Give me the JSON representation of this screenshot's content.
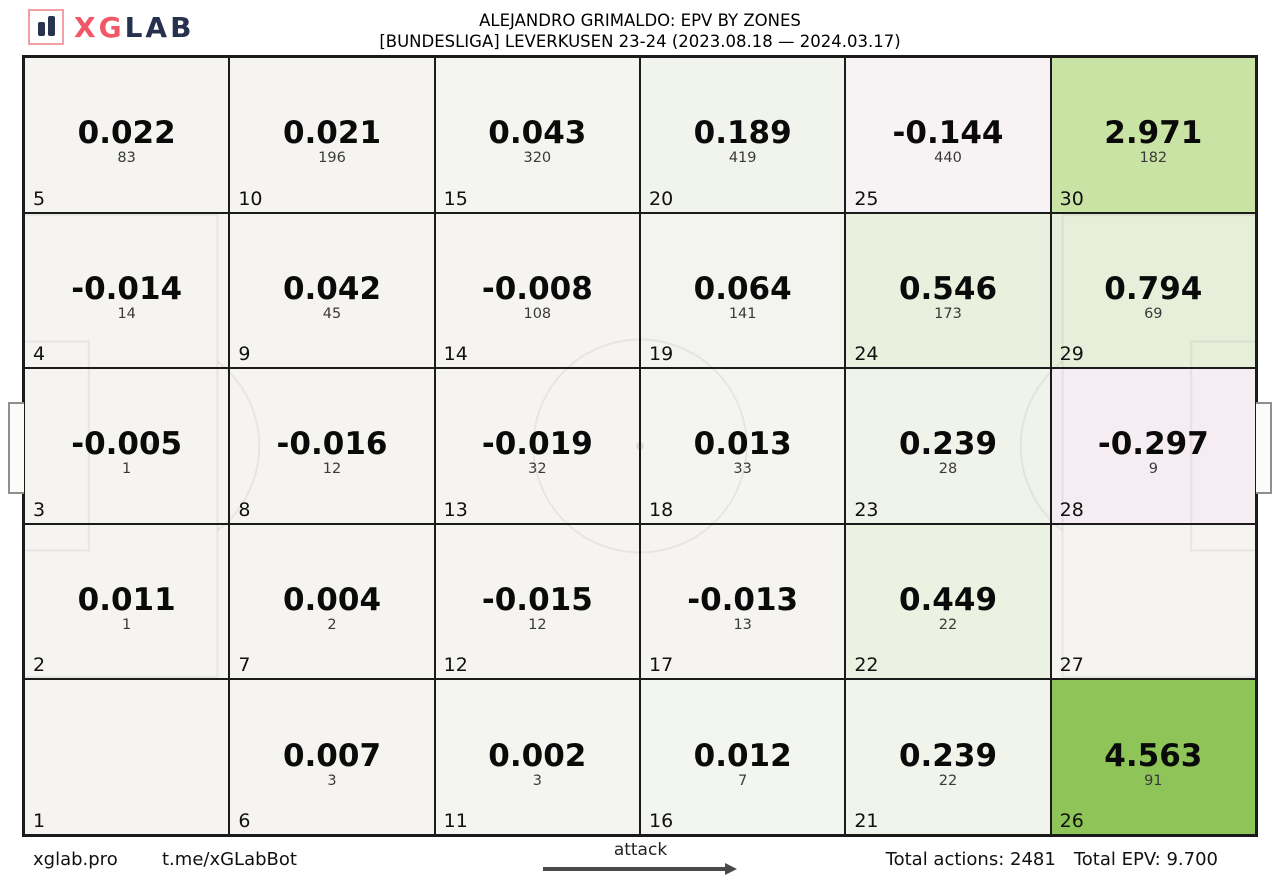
{
  "header": {
    "logo": {
      "text_primary": "XG",
      "text_secondary": "LAB",
      "accent_color": "#f25767",
      "navy_color": "#26324d",
      "icon": "bar-chart-icon"
    },
    "title_line1": "ALEJANDRO GRIMALDO: EPV BY ZONES",
    "title_line2": "[BUNDESLIGA] LEVERKUSEN 23-24 (2023.08.18 — 2024.03.17)"
  },
  "footer": {
    "site": "xglab.pro",
    "bot": "t.me/xGLabBot",
    "attack_label": "attack",
    "total_actions": {
      "label": "Total actions:",
      "value": "2481"
    },
    "total_epv": {
      "label": "Total EPV:",
      "value": "9.700"
    }
  },
  "chart_data": {
    "type": "heatmap",
    "title": "ALEJANDRO GRIMALDO: EPV BY ZONES",
    "subtitle": "[BUNDESLIGA] LEVERKUSEN 23-24 (2023.08.18 — 2024.03.17)",
    "description": "EPV (expected possession value) per pitch zone with action counts; zones numbered 1-30 bottom-left column-major; attack direction left to right",
    "rows": 5,
    "cols": 6,
    "totals": {
      "actions": 2481,
      "epv": 9.7
    },
    "colors": {
      "default_bg": "#f5f4f1",
      "strong_positive": "#8ec458",
      "medium_positive": "#c9e3a4",
      "light_positive": "#eaf0de",
      "negative_tint": "#f6edf2",
      "grid_line": "#1b1b1b"
    },
    "cells": [
      [
        {
          "zone": 5,
          "epv": "0.022",
          "count": "83",
          "bg": "#f5f4f1"
        },
        {
          "zone": 10,
          "epv": "0.021",
          "count": "196",
          "bg": "#f5f4f1"
        },
        {
          "zone": 15,
          "epv": "0.043",
          "count": "320",
          "bg": "#f4f5f1"
        },
        {
          "zone": 20,
          "epv": "0.189",
          "count": "419",
          "bg": "#f1f4ec"
        },
        {
          "zone": 25,
          "epv": "-0.144",
          "count": "440",
          "bg": "#f7f3f5"
        },
        {
          "zone": 30,
          "epv": "2.971",
          "count": "182",
          "bg": "#c9e3a4"
        }
      ],
      [
        {
          "zone": 4,
          "epv": "-0.014",
          "count": "14",
          "bg": "#f5f4f1"
        },
        {
          "zone": 9,
          "epv": "0.042",
          "count": "45",
          "bg": "#f5f4f1"
        },
        {
          "zone": 14,
          "epv": "-0.008",
          "count": "108",
          "bg": "#f5f4f1"
        },
        {
          "zone": 19,
          "epv": "0.064",
          "count": "141",
          "bg": "#f3f4ef"
        },
        {
          "zone": 24,
          "epv": "0.546",
          "count": "173",
          "bg": "#eaf0de"
        },
        {
          "zone": 29,
          "epv": "0.794",
          "count": "69",
          "bg": "#e7efda"
        }
      ],
      [
        {
          "zone": 3,
          "epv": "-0.005",
          "count": "1",
          "bg": "#f5f4f1"
        },
        {
          "zone": 8,
          "epv": "-0.016",
          "count": "12",
          "bg": "#f5f4f1"
        },
        {
          "zone": 13,
          "epv": "-0.019",
          "count": "32",
          "bg": "#f5f4f1"
        },
        {
          "zone": 18,
          "epv": "0.013",
          "count": "33",
          "bg": "#f4f4f1"
        },
        {
          "zone": 23,
          "epv": "0.239",
          "count": "28",
          "bg": "#f0f3ea"
        },
        {
          "zone": 28,
          "epv": "-0.297",
          "count": "9",
          "bg": "#f6edf2"
        }
      ],
      [
        {
          "zone": 2,
          "epv": "0.011",
          "count": "1",
          "bg": "#f5f4f1"
        },
        {
          "zone": 7,
          "epv": "0.004",
          "count": "2",
          "bg": "#f5f4f1"
        },
        {
          "zone": 12,
          "epv": "-0.015",
          "count": "12",
          "bg": "#f5f4f1"
        },
        {
          "zone": 17,
          "epv": "-0.013",
          "count": "13",
          "bg": "#f5f4f1"
        },
        {
          "zone": 22,
          "epv": "0.449",
          "count": "22",
          "bg": "#ecf2e1"
        },
        {
          "zone": 27,
          "epv": "",
          "count": "",
          "bg": "#f5f4f1"
        }
      ],
      [
        {
          "zone": 1,
          "epv": "",
          "count": "",
          "bg": "#f5f4f1"
        },
        {
          "zone": 6,
          "epv": "0.007",
          "count": "3",
          "bg": "#f5f4f1"
        },
        {
          "zone": 11,
          "epv": "0.002",
          "count": "3",
          "bg": "#f4f5f1"
        },
        {
          "zone": 16,
          "epv": "0.012",
          "count": "7",
          "bg": "#f3f5f0"
        },
        {
          "zone": 21,
          "epv": "0.239",
          "count": "22",
          "bg": "#f0f4ea"
        },
        {
          "zone": 26,
          "epv": "4.563",
          "count": "91",
          "bg": "#8ec458"
        }
      ]
    ]
  }
}
